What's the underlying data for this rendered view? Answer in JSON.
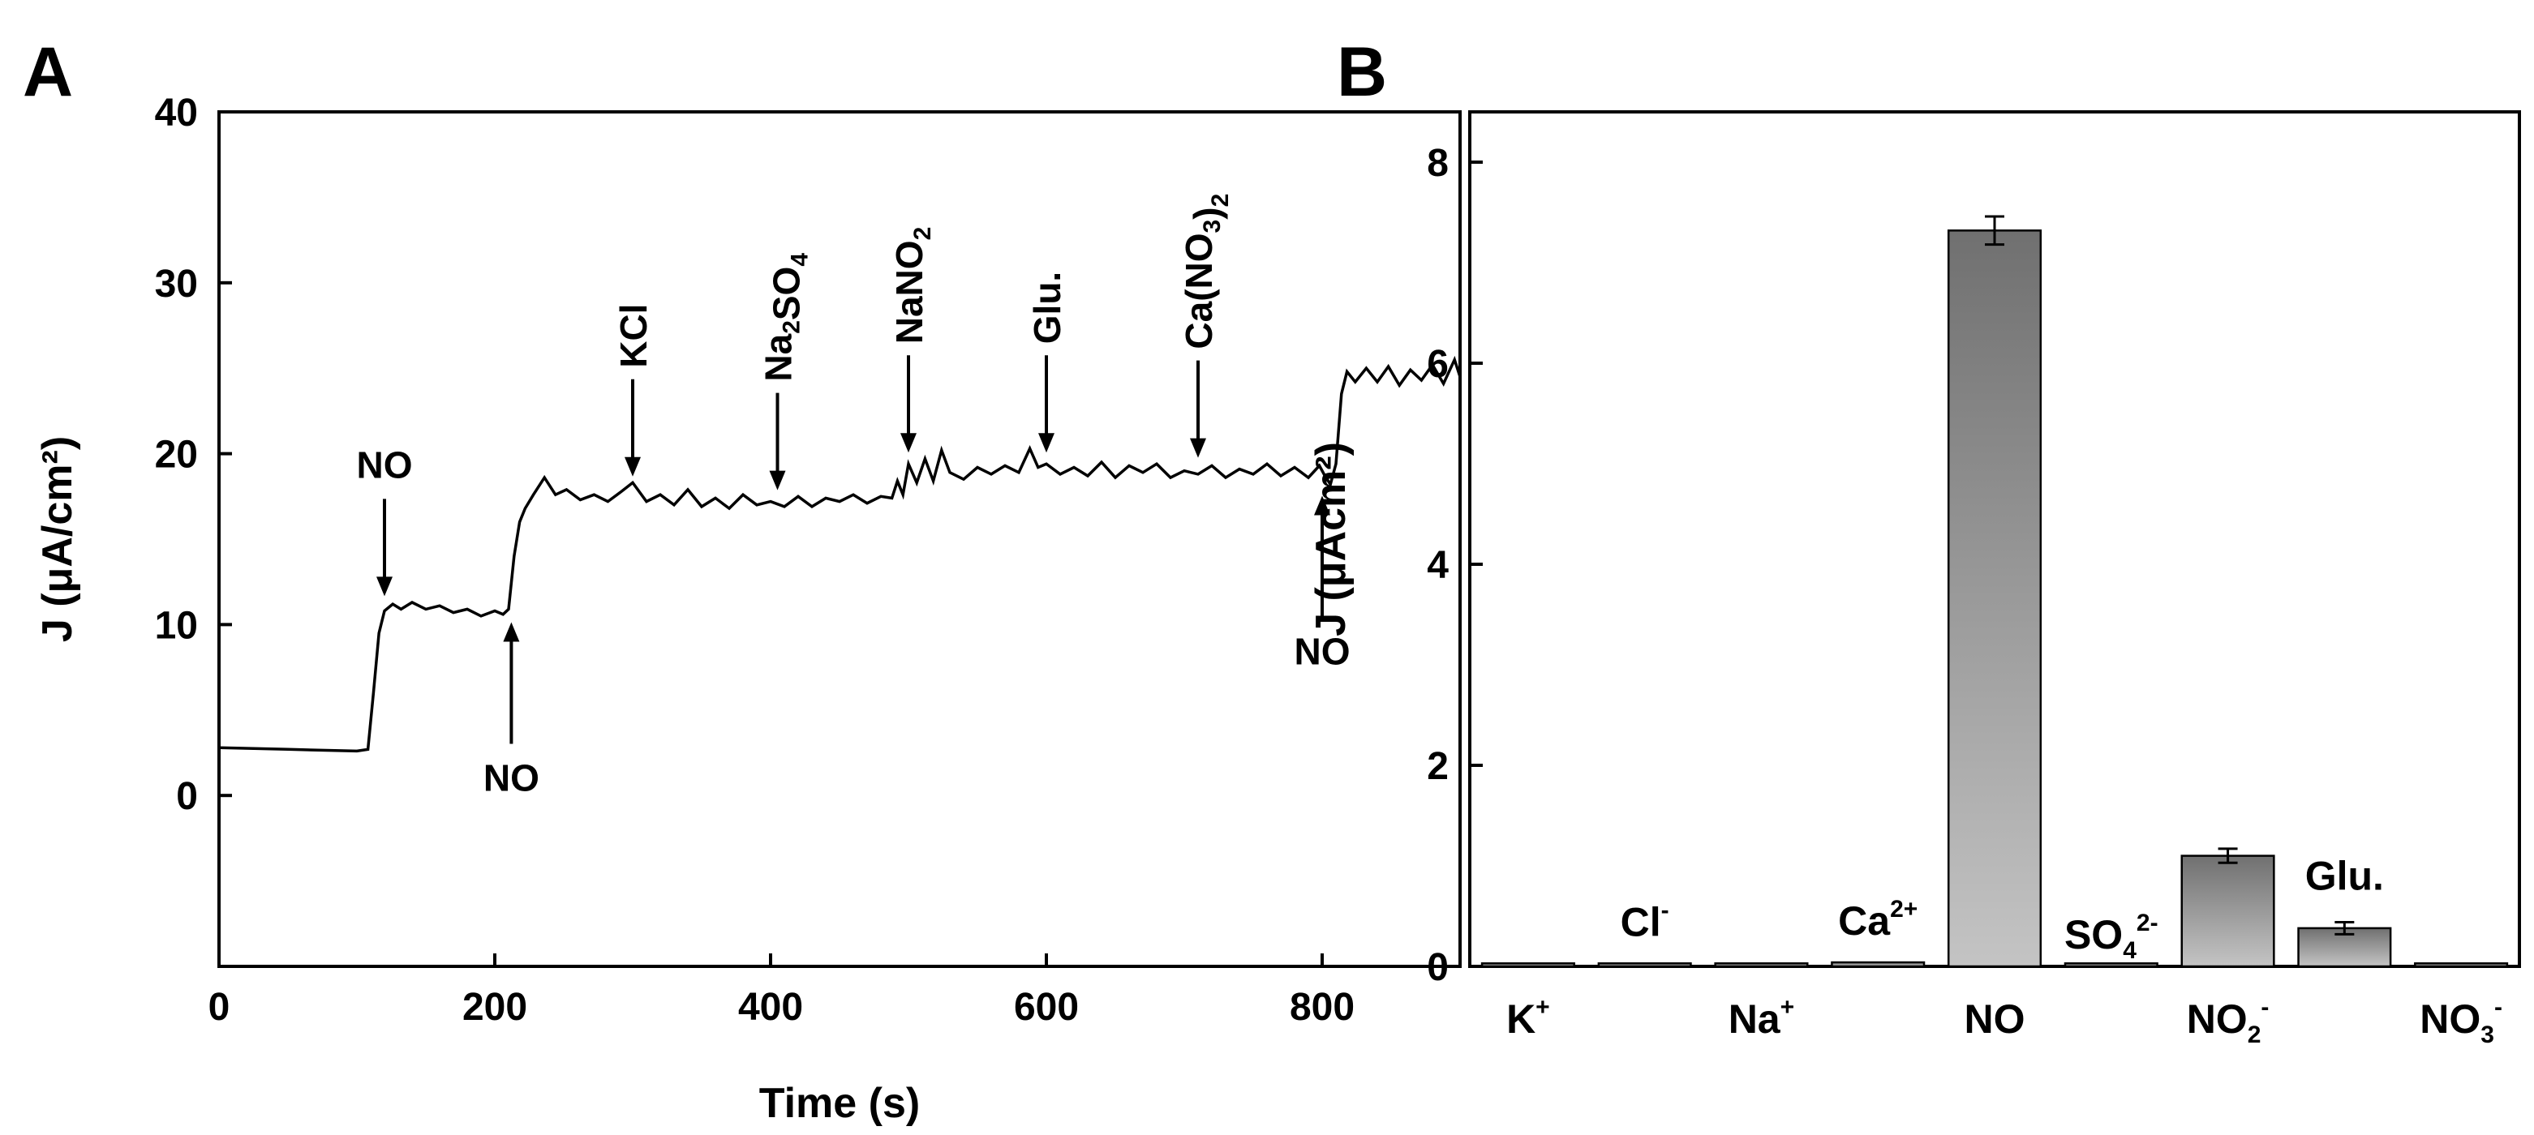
{
  "chart_data": [
    {
      "panel": "A",
      "type": "line",
      "title": "",
      "xlabel": "Time (s)",
      "ylabel": "J (μA/cm²)",
      "xlim": [
        0,
        900
      ],
      "ylim": [
        -10,
        40
      ],
      "xticks": [
        0,
        200,
        400,
        600,
        800
      ],
      "yticks": [
        0,
        10,
        20,
        30,
        40
      ],
      "grid": false,
      "series": [
        {
          "x": [
            0,
            50,
            100,
            108,
            112,
            116,
            120,
            126,
            132,
            140,
            150,
            160,
            170,
            180,
            190,
            200,
            206,
            210,
            214,
            218,
            222,
            228,
            236,
            244,
            252,
            262,
            272,
            282,
            292,
            300,
            310,
            320,
            330,
            340,
            350,
            360,
            370,
            380,
            390,
            400,
            410,
            420,
            430,
            440,
            450,
            460,
            470,
            480,
            488,
            492,
            496,
            500,
            506,
            512,
            518,
            524,
            530,
            540,
            550,
            560,
            570,
            580,
            588,
            594,
            600,
            610,
            620,
            630,
            640,
            650,
            660,
            670,
            680,
            690,
            700,
            710,
            720,
            730,
            740,
            750,
            760,
            770,
            780,
            790,
            798,
            802,
            806,
            810,
            814,
            818,
            824,
            832,
            840,
            848,
            856,
            864,
            872,
            880,
            888,
            896,
            900
          ],
          "y": [
            2.8,
            2.7,
            2.6,
            2.7,
            6.0,
            9.5,
            10.8,
            11.2,
            10.9,
            11.3,
            10.9,
            11.1,
            10.7,
            10.9,
            10.5,
            10.8,
            10.6,
            10.9,
            14.0,
            16.0,
            16.8,
            17.6,
            18.6,
            17.6,
            17.9,
            17.3,
            17.6,
            17.2,
            17.8,
            18.3,
            17.2,
            17.6,
            17.0,
            17.9,
            16.9,
            17.4,
            16.8,
            17.6,
            17.0,
            17.2,
            16.9,
            17.5,
            16.9,
            17.4,
            17.2,
            17.6,
            17.1,
            17.5,
            17.4,
            18.4,
            17.6,
            19.4,
            18.3,
            19.7,
            18.4,
            20.2,
            18.9,
            18.5,
            19.2,
            18.8,
            19.3,
            18.9,
            20.3,
            19.2,
            19.4,
            18.8,
            19.2,
            18.7,
            19.5,
            18.6,
            19.3,
            18.9,
            19.4,
            18.6,
            19.0,
            18.8,
            19.3,
            18.6,
            19.1,
            18.8,
            19.4,
            18.7,
            19.2,
            18.6,
            19.3,
            18.7,
            18.2,
            19.4,
            23.5,
            24.8,
            24.2,
            25.0,
            24.2,
            25.1,
            24.0,
            24.9,
            24.3,
            25.2,
            24.1,
            25.5,
            24.5
          ]
        }
      ],
      "annotations": [
        {
          "label": "NO",
          "x": 120,
          "y": 11.0,
          "direction": "down"
        },
        {
          "label": "NO",
          "x": 212,
          "y": 10.8,
          "direction": "up"
        },
        {
          "label": "KCl",
          "x": 300,
          "y": 18.0,
          "direction": "down"
        },
        {
          "label": "Na2SO4",
          "x": 405,
          "y": 17.2,
          "direction": "down"
        },
        {
          "label": "NaNO2",
          "x": 500,
          "y": 19.4,
          "direction": "down"
        },
        {
          "label": "Glu.",
          "x": 600,
          "y": 19.4,
          "direction": "down"
        },
        {
          "label": "Ca(NO3)2",
          "x": 710,
          "y": 19.1,
          "direction": "down"
        },
        {
          "label": "NO",
          "x": 800,
          "y": 18.2,
          "direction": "up"
        }
      ]
    },
    {
      "panel": "B",
      "type": "bar",
      "title": "",
      "xlabel": "",
      "ylabel": "J (μAcm²)",
      "ylim": [
        0,
        8.5
      ],
      "yticks": [
        0,
        2,
        4,
        6,
        8
      ],
      "grid": false,
      "bar_color": "#9a9a9a",
      "categories": [
        "K+",
        "Cl-",
        "Na+",
        "Ca2+",
        "NO",
        "SO42-",
        "NO2-",
        "Glu.",
        "NO3-"
      ],
      "category_labels": [
        {
          "base": "K",
          "sup": "+",
          "sub": ""
        },
        {
          "base": "Cl",
          "sup": "-",
          "sub": ""
        },
        {
          "base": "Na",
          "sup": "+",
          "sub": ""
        },
        {
          "base": "Ca",
          "sup": "2+",
          "sub": ""
        },
        {
          "base": "NO",
          "sup": "",
          "sub": ""
        },
        {
          "base": "SO",
          "sup": "2-",
          "sub": "4"
        },
        {
          "base": "NO",
          "sup": "-",
          "sub": "2"
        },
        {
          "base": "Glu.",
          "sup": "",
          "sub": ""
        },
        {
          "base": "NO",
          "sup": "-",
          "sub": "3"
        }
      ],
      "values": [
        0.03,
        0.03,
        0.03,
        0.04,
        7.32,
        0.03,
        1.1,
        0.38,
        0.03
      ],
      "errors": [
        0.0,
        0.0,
        0.0,
        0.0,
        0.14,
        0.0,
        0.07,
        0.06,
        0.0
      ]
    }
  ],
  "panels": {
    "a_letter": "A",
    "b_letter": "B"
  }
}
